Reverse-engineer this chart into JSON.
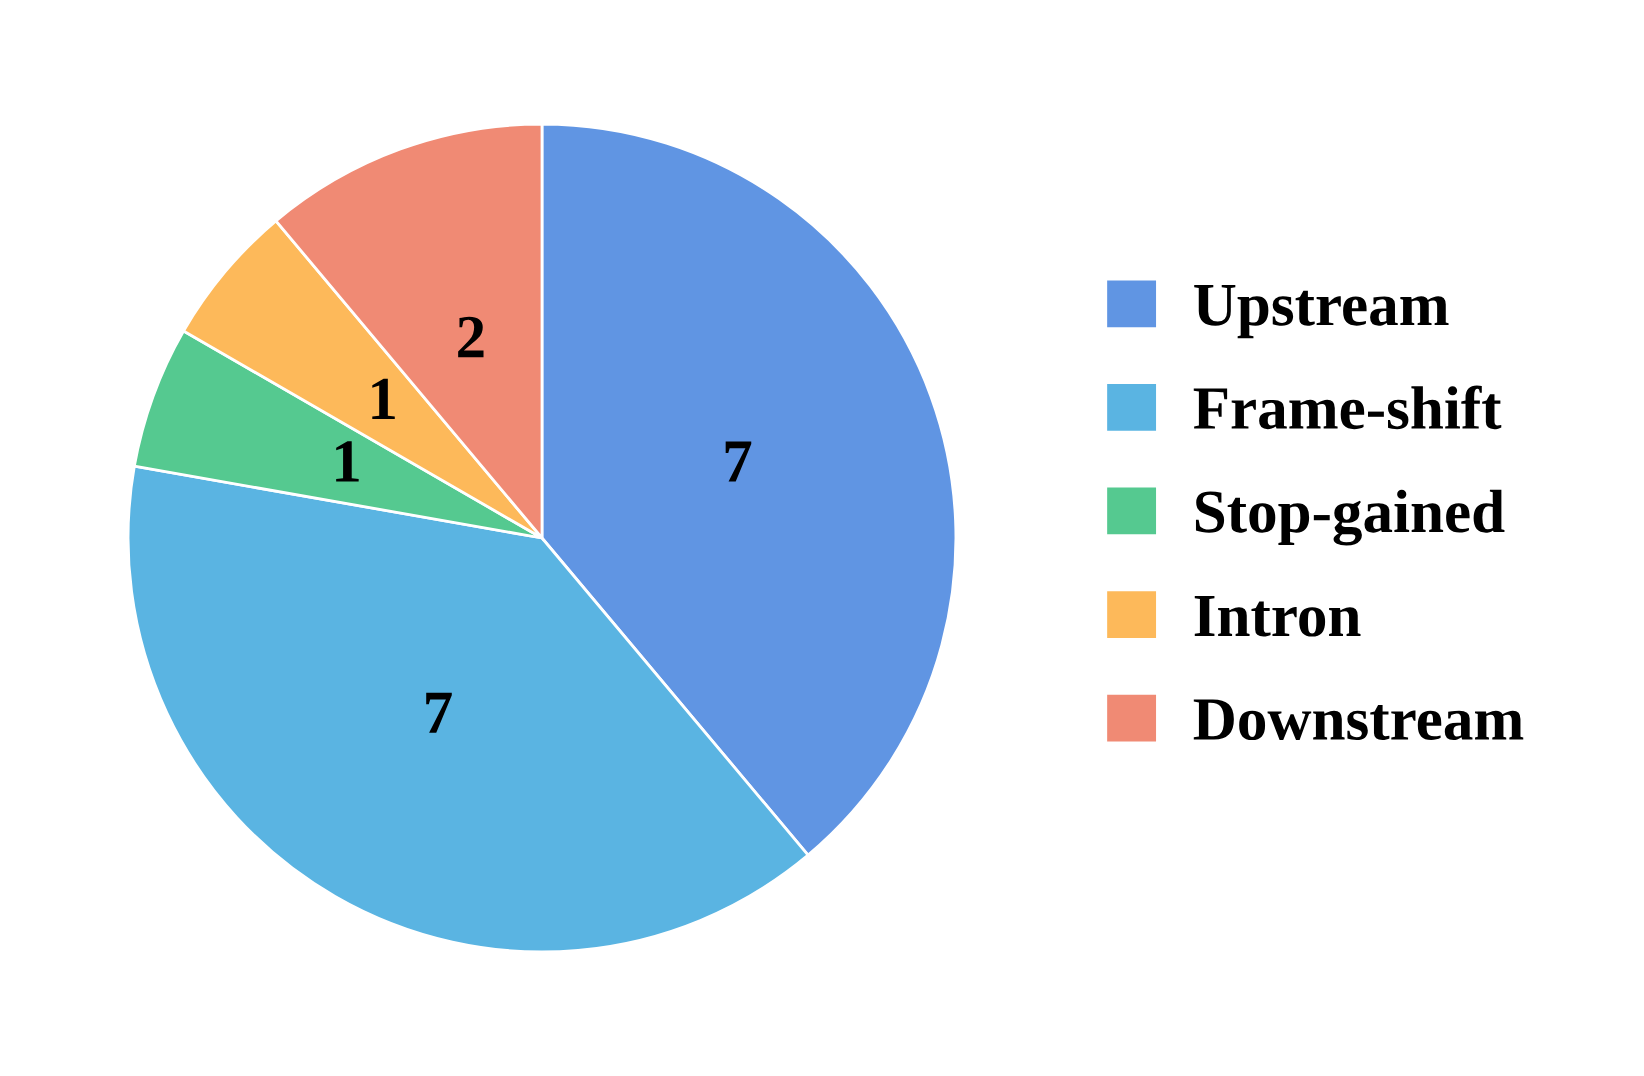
{
  "chart_data": {
    "type": "pie",
    "categories": [
      "Upstream",
      "Frame-shift",
      "Stop-gained",
      "Intron",
      "Downstream"
    ],
    "values": [
      7,
      7,
      1,
      1,
      2
    ],
    "colors": [
      "#6095e3",
      "#5ab4e2",
      "#55c990",
      "#fdb95a",
      "#f08a74"
    ],
    "data_labels": true,
    "legend": "right"
  }
}
